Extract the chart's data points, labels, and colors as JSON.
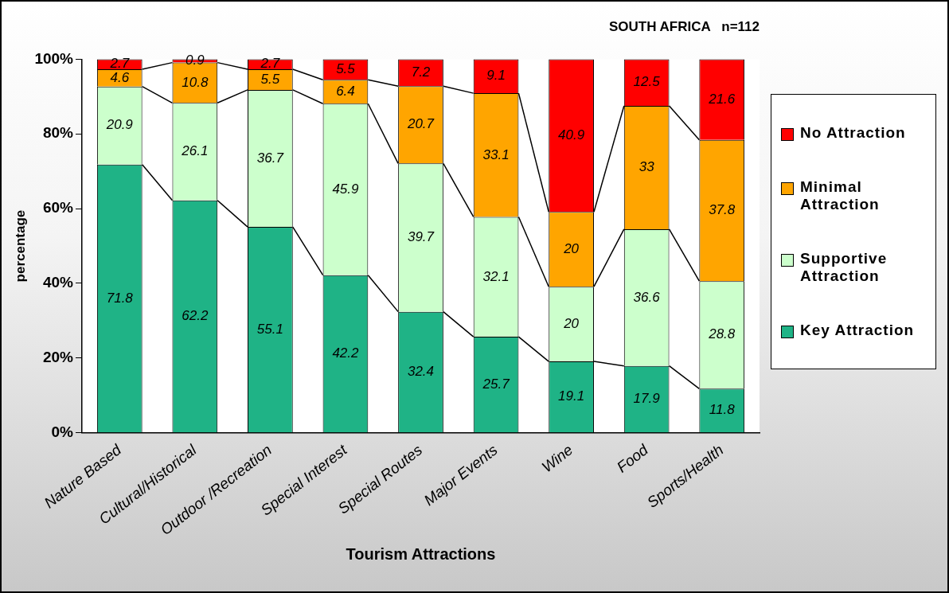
{
  "chart_data": {
    "type": "bar",
    "stacked": true,
    "title": "SOUTH AFRICA   n=112",
    "xlabel": "Tourism Attractions",
    "ylabel": "percentage",
    "categories": [
      "Nature Based",
      "Cultural/Historical",
      "Outdoor /Recreation",
      "Special Interest",
      "Special Routes",
      "Major Events",
      "Wine",
      "Food",
      "Sports/Health"
    ],
    "series": [
      {
        "name": "Key Attraction",
        "color": "#1fb386",
        "values": [
          71.8,
          62.2,
          55.1,
          42.2,
          32.4,
          25.7,
          19.1,
          17.9,
          11.8
        ]
      },
      {
        "name": "Supportive Attraction",
        "color": "#ccffcc",
        "values": [
          20.9,
          26.1,
          36.7,
          45.9,
          39.7,
          32.1,
          20,
          36.6,
          28.8
        ]
      },
      {
        "name": "Minimal Attraction",
        "color": "#ffa500",
        "values": [
          4.6,
          10.8,
          5.5,
          6.4,
          20.7,
          33.1,
          20,
          33,
          37.8
        ]
      },
      {
        "name": "No Attraction",
        "color": "#ff0000",
        "values": [
          2.7,
          0.9,
          2.7,
          5.5,
          7.2,
          9.1,
          40.9,
          12.5,
          21.6
        ]
      }
    ],
    "ylim": [
      0,
      100
    ],
    "yticks": [
      {
        "value": 0,
        "label": "0%"
      },
      {
        "value": 20,
        "label": "20%"
      },
      {
        "value": 40,
        "label": "40%"
      },
      {
        "value": 60,
        "label": "60%"
      },
      {
        "value": 80,
        "label": "80%"
      },
      {
        "value": 100,
        "label": "100%"
      }
    ],
    "data_labels": true,
    "legend": "right",
    "grid": false
  }
}
